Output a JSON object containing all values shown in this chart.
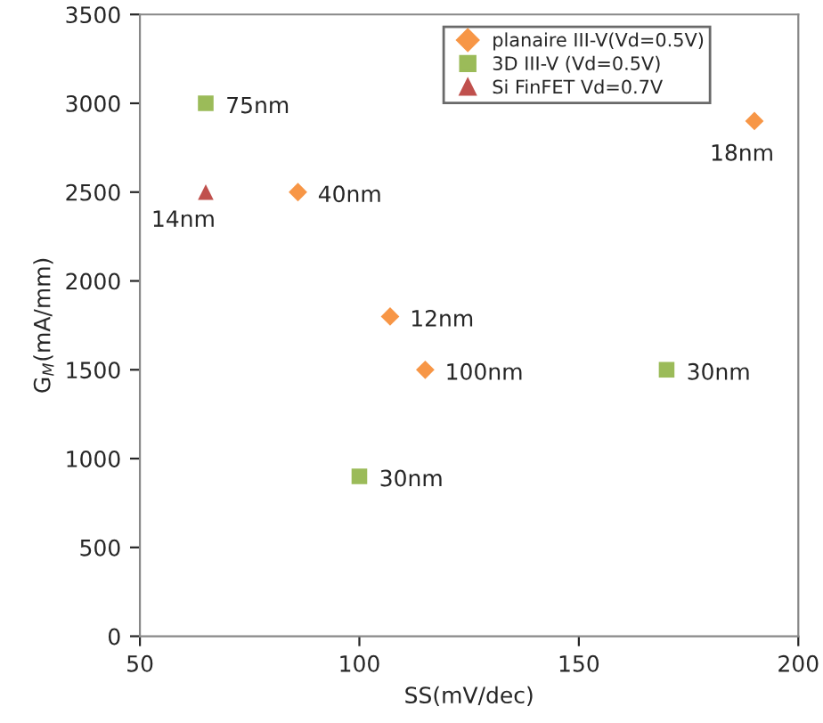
{
  "chart_data": {
    "type": "scatter",
    "xlabel": "SS(mV/dec)",
    "ylabel": "G$_{M}$(mA/mm)",
    "xlim": [
      50,
      200
    ],
    "xticks": [
      50,
      100,
      150,
      200
    ],
    "ylim": [
      0,
      3500
    ],
    "yticks": [
      0,
      500,
      1000,
      1500,
      2000,
      2500,
      3000,
      3500
    ],
    "grid": false,
    "legend": "top right",
    "series": [
      {
        "name": "planaire III-V(Vd=0.5V)",
        "color": "#f79646",
        "marker": "diamond",
        "x": [
          86,
          107,
          115,
          190
        ],
        "values": [
          2500,
          1800,
          1500,
          2900
        ]
      },
      {
        "name": "3D III-V (Vd=0.5V)",
        "color": "#9bbb59",
        "marker": "square",
        "x": [
          65,
          100,
          170
        ],
        "values": [
          3000,
          900,
          1500
        ]
      },
      {
        "name": "Si FinFET Vd=0.7V",
        "color": "#c0504d",
        "marker": "triangle",
        "x": [
          65
        ],
        "values": [
          2500
        ]
      }
    ],
    "annotations": [
      {
        "text": "75nm",
        "x": 65,
        "y": 3000
      },
      {
        "text": "40nm",
        "x": 86,
        "y": 2500
      },
      {
        "text": "12nm",
        "x": 107,
        "y": 1800
      },
      {
        "text": "100nm",
        "x": 115,
        "y": 1500
      },
      {
        "text": "30nm",
        "x": 100,
        "y": 900
      },
      {
        "text": "30nm",
        "x": 170,
        "y": 1500
      },
      {
        "text": "18nm",
        "x": 190,
        "y": 2900
      },
      {
        "text": "14nm",
        "x": 65,
        "y": 2500
      }
    ]
  }
}
